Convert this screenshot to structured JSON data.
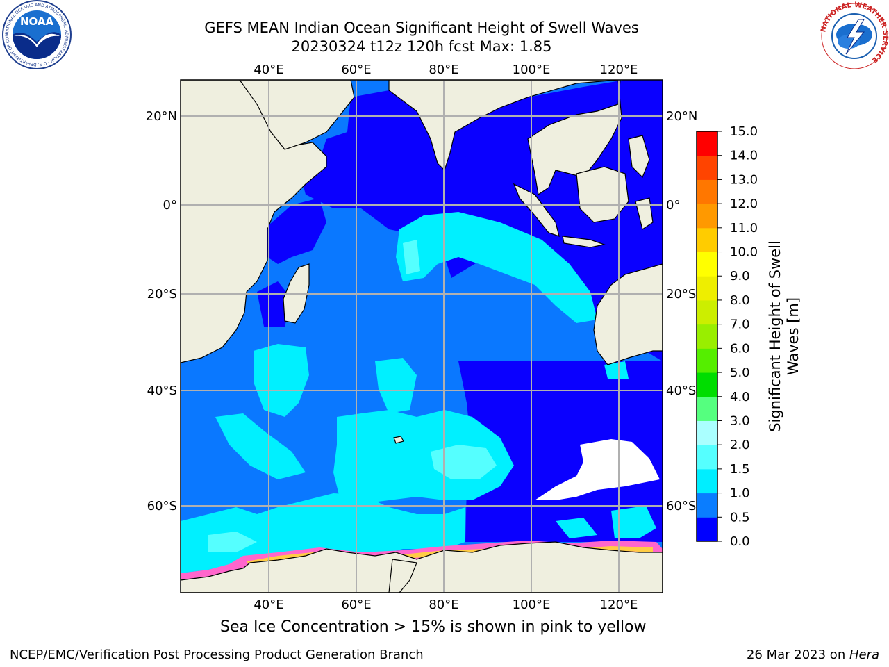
{
  "header": {
    "title_line1": "GEFS MEAN Indian Ocean Significant Height of Swell Waves",
    "title_line2": "20230324 t12z 120h fcst   Max: 1.85"
  },
  "logos": {
    "left": "NOAA",
    "left_ring": "NATIONAL OCEANIC AND ATMOSPHERIC ADMINISTRATION · U.S. DEPARTMENT OF COMMERCE",
    "right_ring": "NATIONAL WEATHER SERVICE"
  },
  "map": {
    "lon_ticks": [
      "40°E",
      "60°E",
      "80°E",
      "100°E",
      "120°E"
    ],
    "lat_ticks": [
      "20°N",
      "0°",
      "20°S",
      "40°S",
      "60°S"
    ],
    "colors": {
      "land": "#efefdf",
      "deep_blue": "#0a00ff",
      "mid_blue": "#0a78ff",
      "cyan": "#00f0ff",
      "light_cyan": "#55ffff",
      "ice_pink": "#ff66cc",
      "ice_yellow": "#ffcc44",
      "grid": "#b0b0b0"
    }
  },
  "colorbar": {
    "label_line1": "Significant Height of Swell",
    "label_line2": "Waves [m]",
    "ticks": [
      "0.0",
      "0.5",
      "1.0",
      "1.5",
      "2.0",
      "3.0",
      "4.0",
      "5.0",
      "6.0",
      "7.0",
      "8.0",
      "9.0",
      "10.0",
      "11.0",
      "12.0",
      "13.0",
      "14.0",
      "15.0"
    ],
    "colors": [
      "#0000ff",
      "#0a7dff",
      "#00eeff",
      "#55ffff",
      "#aaffff",
      "#55ff7f",
      "#00dd00",
      "#55ee00",
      "#99ee00",
      "#ccee00",
      "#eeee00",
      "#ffff00",
      "#ffcc00",
      "#ff9900",
      "#ff7700",
      "#ff4400",
      "#ff0000"
    ]
  },
  "caption": "Sea Ice Concentration > 15% is shown in pink to yellow",
  "footer": {
    "left": "NCEP/EMC/Verification Post Processing Product Generation Branch",
    "date": "26 Mar 2023 on ",
    "machine": "Hera"
  }
}
